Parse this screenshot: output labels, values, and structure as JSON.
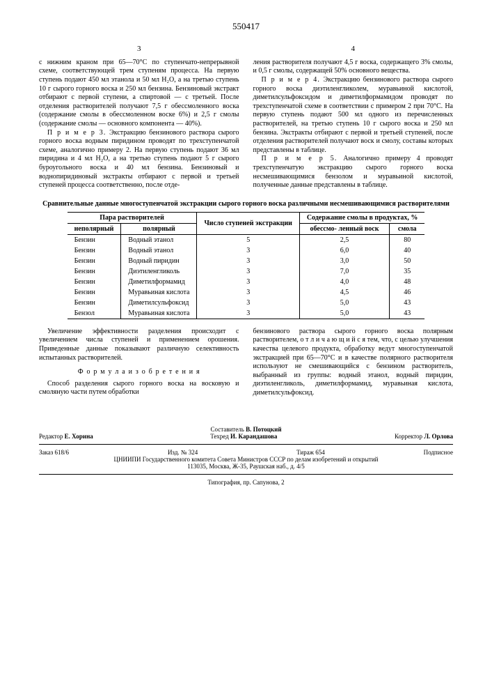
{
  "patent_number": "550417",
  "col_left_num": "3",
  "col_right_num": "4",
  "left": {
    "p1": "с нижним краном при 65—70°С по ступенчато-непрерывной схеме, соответствующей трем ступеням процесса. На первую ступень подают 450 мл этанола и 50 мл H₂O, а на третью ступень 10 г сырого горного воска и 250 мл бензина. Бензиновый экстракт отбирают с первой ступени, а спиртовой — с третьей. После отделения растворителей получают 7,5 г обессмоленного воска (содержание смолы в обессмоленном воске 6%) и 2,5 г смолы (содержание смолы — основного компонента — 40%).",
    "p2_lead": "П р и м е р  3.",
    "p2": " Экстракцию бензинового раствора сырого горного воска водным пиридином проводят по трехступенчатой схеме, аналогично примеру 2. На первую ступень подают 36 мл пиридина и 4 мл H₂O, а на третью ступень подают 5 г сырого буроугольного воска и 40 мл бензина. Бензиновый и воднопиридиновый экстракты отбирают с первой и третьей ступеней процесса соответственно, после отде-"
  },
  "right": {
    "p1": "ления растворителя получают 4,5 г воска, содержащего 3% смолы, и 0,5 г смолы, содержащей 50% основного вещества.",
    "p2_lead": "П р и м е р  4.",
    "p2": " Экстракцию бензинового раствора сырого горного воска диэтиленгликолем, муравьиной кислотой, диметилсульфоксидом и диметилформамидом проводят по трехступенчатой схеме в соответствии с примером 2 при 70°С. На первую ступень подают 500 мл одного из перечисленных растворителей, на третью ступень 10 г сырого воска и 250 мл бензина. Экстракты отбирают с первой и третьей ступеней, после отделения растворителей получают воск и смолу, составы которых представлены в таблице.",
    "p3_lead": "П р и м е р  5.",
    "p3": " Аналогично примеру 4 проводят трехступенчатую экстракцию сырого горного воска несмешивающимися бензолом и муравьиной кислотой, полученные данные представлены в таблице."
  },
  "table": {
    "caption": "Сравнительные данные многоступенчатой экстракции сырого горного воска различными несмешивающимися растворителями",
    "head": {
      "pair": "Пара растворителей",
      "steps": "Число ступеней экстракции",
      "content": "Содержание смолы в продуктах, %",
      "nonpolar": "неполярный",
      "polar": "полярный",
      "wax": "обессмо-\nленный воск",
      "resin": "смола"
    },
    "rows": [
      [
        "Бензин",
        "Водный этанол",
        "5",
        "2,5",
        "80"
      ],
      [
        "Бензин",
        "Водный этанол",
        "3",
        "6,0",
        "40"
      ],
      [
        "Бензин",
        "Водный пиридин",
        "3",
        "3,0",
        "50"
      ],
      [
        "Бензин",
        "Диэтиленгликоль",
        "3",
        "7,0",
        "35"
      ],
      [
        "Бензин",
        "Диметилформамид",
        "3",
        "4,0",
        "48"
      ],
      [
        "Бензин",
        "Муравьиная кислота",
        "3",
        "4,5",
        "46"
      ],
      [
        "Бензин",
        "Диметилсульфоксид",
        "3",
        "5,0",
        "43"
      ],
      [
        "Бензол",
        "Муравьиная кислота",
        "3",
        "5,0",
        "43"
      ]
    ]
  },
  "lower_left": {
    "p1": "Увеличение эффективности разделения происходит с увеличением числа ступеней и применением орошения. Приведенные данные показывают различную селективность испытанных растворителей.",
    "formula_title": "Ф о р м у л а  и з о б р е т е н и я",
    "p2": "Способ разделения сырого горного воска на восковую и смоляную части путем обработки"
  },
  "lower_right": {
    "p1": "бензинового раствора сырого горного воска полярным растворителем, о т л и ч а ю щ и й с я тем, что, с целью улучшения качества целевого продукта, обработку ведут многоступенчатой экстракцией при 65—70°С и в качестве полярного растворителя используют не смешивающийся с бензином растворитель, выбранный из группы: водный этанол, водный пиридин, диэтиленгликоль, диметилформамид, муравьиная кислота, диметилсульфоксид."
  },
  "footer": {
    "composer_label": "Составитель",
    "composer": "В. Потоцкий",
    "editor_label": "Редактор",
    "editor": "Е. Хорина",
    "techred_label": "Техред",
    "techred": "И. Карандашова",
    "corrector_label": "Корректор",
    "corrector": "Л. Орлова",
    "order": "Заказ 618/6",
    "izd": "Изд. № 324",
    "tirage": "Тираж 654",
    "sub": "Подписное",
    "org": "ЦНИИПИ Государственного комитета Совета Министров СССР по делам изобретений и открытий",
    "address": "113035, Москва, Ж-35, Раушская наб., д. 4/5",
    "typography": "Типография, пр. Сапунова, 2"
  }
}
